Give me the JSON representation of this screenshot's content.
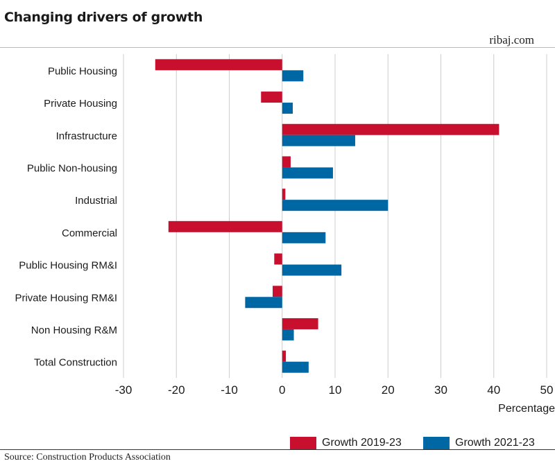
{
  "header": {
    "title": "Changing drivers of growth",
    "brand": "ribaj.com"
  },
  "footer": {
    "source": "Source: Construction Products Association"
  },
  "colors": {
    "series1": "#c8102e",
    "series2": "#0067a5",
    "grid": "#cccccc"
  },
  "chart_data": {
    "type": "bar",
    "orientation": "horizontal",
    "title": "Changing drivers of growth",
    "xlabel": "Percentage",
    "ylabel": "",
    "xlim": [
      -30,
      50
    ],
    "xticks": [
      -30,
      -20,
      -10,
      0,
      10,
      20,
      30,
      40,
      50
    ],
    "xtick_labels": [
      "-30",
      "-20",
      "-10",
      "0",
      "10",
      "20",
      "30",
      "40",
      "50"
    ],
    "grid": "vertical",
    "legend_position": "bottom-right",
    "categories": [
      "Public Housing",
      "Private Housing",
      "Infrastructure",
      "Public Non-housing",
      "Industrial",
      "Commercial",
      "Public Housing RM&I",
      "Private Housing RM&I",
      "Non Housing R&M",
      "Total Construction"
    ],
    "series": [
      {
        "name": "Growth 2019-23",
        "values": [
          -24,
          -4,
          41,
          1.6,
          0.6,
          -21.5,
          -1.5,
          -1.8,
          6.8,
          0.7
        ]
      },
      {
        "name": "Growth 2021-23",
        "values": [
          4,
          2,
          13.8,
          9.6,
          20,
          8.2,
          11.2,
          -7,
          2.2,
          5
        ]
      }
    ]
  }
}
